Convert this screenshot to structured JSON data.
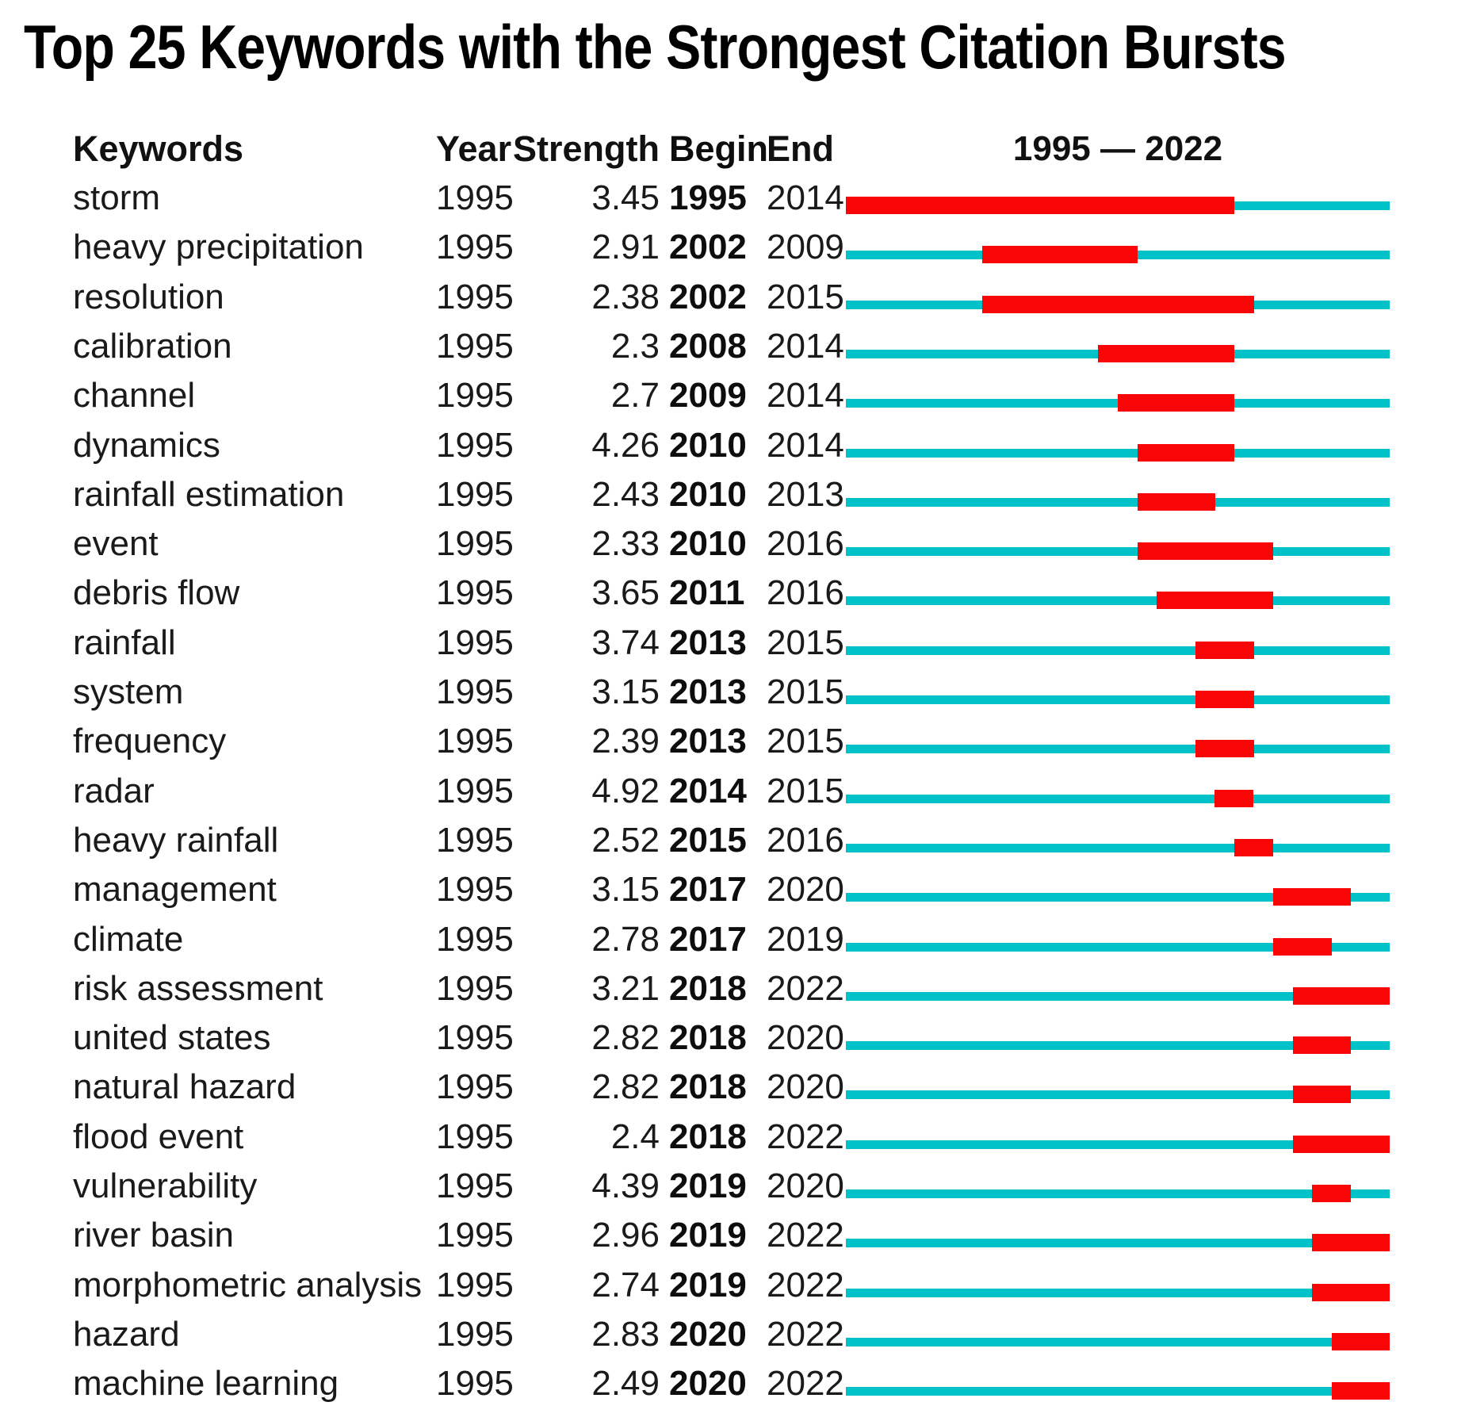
{
  "title": "Top 25 Keywords with the Strongest Citation Bursts",
  "columns": {
    "keywords": "Keywords",
    "year": "Year",
    "strength": "Strength",
    "begin": "Begin",
    "end": "End"
  },
  "timeline": {
    "start_year": 1995,
    "end_year": 2022,
    "range_label": "1995 — 2022"
  },
  "colors": {
    "timeline_teal": "#00c2c8",
    "burst_red": "#fa0505",
    "text": "#1a1a1a"
  },
  "chart_data": {
    "type": "table",
    "title": "Top 25 Keywords with the Strongest Citation Bursts",
    "description": "Citation burst timeline: teal line spans 1995-2022; red segment marks burst period from Begin to End year inclusive.",
    "column_headers": [
      "Keywords",
      "Year",
      "Strength",
      "Begin",
      "End",
      "1995 — 2022"
    ],
    "rows": [
      {
        "keyword": "storm",
        "year": "1995",
        "strength": "3.45",
        "begin": 1995,
        "end": 2014
      },
      {
        "keyword": "heavy precipitation",
        "year": "1995",
        "strength": "2.91",
        "begin": 2002,
        "end": 2009
      },
      {
        "keyword": "resolution",
        "year": "1995",
        "strength": "2.38",
        "begin": 2002,
        "end": 2015
      },
      {
        "keyword": "calibration",
        "year": "1995",
        "strength": "2.3",
        "begin": 2008,
        "end": 2014
      },
      {
        "keyword": "channel",
        "year": "1995",
        "strength": "2.7",
        "begin": 2009,
        "end": 2014
      },
      {
        "keyword": "dynamics",
        "year": "1995",
        "strength": "4.26",
        "begin": 2010,
        "end": 2014
      },
      {
        "keyword": "rainfall estimation",
        "year": "1995",
        "strength": "2.43",
        "begin": 2010,
        "end": 2013
      },
      {
        "keyword": "event",
        "year": "1995",
        "strength": "2.33",
        "begin": 2010,
        "end": 2016
      },
      {
        "keyword": "debris flow",
        "year": "1995",
        "strength": "3.65",
        "begin": 2011,
        "end": 2016
      },
      {
        "keyword": "rainfall",
        "year": "1995",
        "strength": "3.74",
        "begin": 2013,
        "end": 2015
      },
      {
        "keyword": "system",
        "year": "1995",
        "strength": "3.15",
        "begin": 2013,
        "end": 2015
      },
      {
        "keyword": "frequency",
        "year": "1995",
        "strength": "2.39",
        "begin": 2013,
        "end": 2015
      },
      {
        "keyword": "radar",
        "year": "1995",
        "strength": "4.92",
        "begin": 2014,
        "end": 2015
      },
      {
        "keyword": "heavy rainfall",
        "year": "1995",
        "strength": "2.52",
        "begin": 2015,
        "end": 2016
      },
      {
        "keyword": "management",
        "year": "1995",
        "strength": "3.15",
        "begin": 2017,
        "end": 2020
      },
      {
        "keyword": "climate",
        "year": "1995",
        "strength": "2.78",
        "begin": 2017,
        "end": 2019
      },
      {
        "keyword": "risk assessment",
        "year": "1995",
        "strength": "3.21",
        "begin": 2018,
        "end": 2022
      },
      {
        "keyword": "united states",
        "year": "1995",
        "strength": "2.82",
        "begin": 2018,
        "end": 2020
      },
      {
        "keyword": "natural hazard",
        "year": "1995",
        "strength": "2.82",
        "begin": 2018,
        "end": 2020
      },
      {
        "keyword": "flood event",
        "year": "1995",
        "strength": "2.4",
        "begin": 2018,
        "end": 2022
      },
      {
        "keyword": "vulnerability",
        "year": "1995",
        "strength": "4.39",
        "begin": 2019,
        "end": 2020
      },
      {
        "keyword": "river basin",
        "year": "1995",
        "strength": "2.96",
        "begin": 2019,
        "end": 2022
      },
      {
        "keyword": "morphometric analysis",
        "year": "1995",
        "strength": "2.74",
        "begin": 2019,
        "end": 2022
      },
      {
        "keyword": "hazard",
        "year": "1995",
        "strength": "2.83",
        "begin": 2020,
        "end": 2022
      },
      {
        "keyword": "machine learning",
        "year": "1995",
        "strength": "2.49",
        "begin": 2020,
        "end": 2022
      }
    ]
  }
}
